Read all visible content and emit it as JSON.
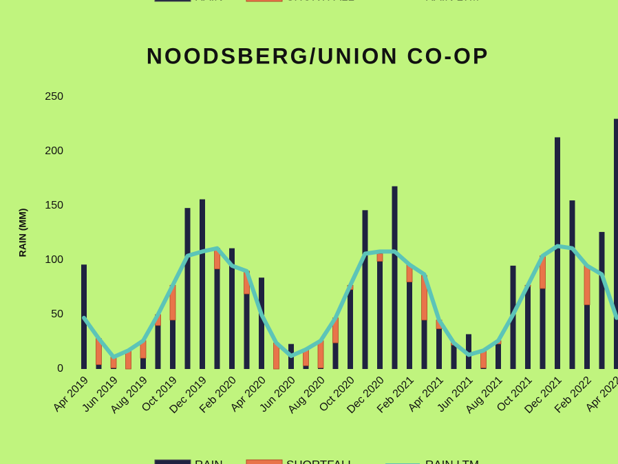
{
  "chart_data": {
    "type": "bar",
    "title": "NOODSBERG/UNION  CO-OP",
    "y_label": "RAIN (MM)",
    "categories": [
      "Apr 2019",
      null,
      "Jun 2019",
      null,
      "Aug 2019",
      null,
      "Oct 2019",
      null,
      "Dec 2019",
      null,
      "Feb 2020",
      null,
      "Apr 2020",
      null,
      "Jun 2020",
      null,
      "Aug 2020",
      null,
      "Oct 2020",
      null,
      "Dec 2020",
      null,
      "Feb 2021",
      null,
      "Apr 2021",
      null,
      "Jun 2021",
      null,
      "Aug 2021",
      null,
      "Oct 2021",
      null,
      "Dec 2021",
      null,
      "Feb 2022",
      null,
      "Apr 2022"
    ],
    "series": [
      {
        "name": "RAIN",
        "color": "#1f2240",
        "kind": "bar",
        "values": [
          96,
          4,
          1,
          0,
          10,
          40,
          45,
          148,
          156,
          92,
          111,
          69,
          84,
          0,
          23,
          3,
          1,
          24,
          73,
          146,
          99,
          168,
          80,
          45,
          37,
          22,
          32,
          1,
          23,
          95,
          76,
          74,
          213,
          155,
          59,
          126,
          230
        ]
      },
      {
        "name": "SHORTFALL",
        "color": "#e8744a",
        "kind": "bar",
        "values": [
          0,
          24,
          10,
          17,
          16,
          10,
          32,
          0,
          0,
          19,
          0,
          21,
          0,
          24,
          0,
          15,
          25,
          23,
          4,
          0,
          7,
          0,
          16,
          41,
          8,
          2,
          0,
          16,
          3,
          0,
          1,
          30,
          0,
          0,
          36,
          0,
          0
        ]
      },
      {
        "name": "RAIN LTM",
        "color": "#5cc4b8",
        "kind": "line",
        "values": [
          47,
          28,
          11,
          17,
          26,
          50,
          77,
          104,
          108,
          111,
          95,
          90,
          50,
          24,
          12,
          18,
          26,
          47,
          77,
          106,
          108,
          108,
          96,
          87,
          45,
          24,
          13,
          17,
          26,
          50,
          77,
          104,
          113,
          111,
          95,
          87,
          47
        ]
      }
    ],
    "ylim": [
      0,
      250
    ],
    "yticks": [
      0,
      50,
      100,
      150,
      200,
      250
    ]
  }
}
